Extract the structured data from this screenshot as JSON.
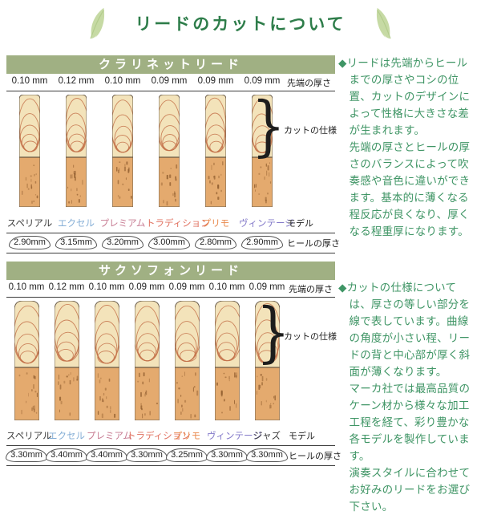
{
  "page_title": "リードのカットについて",
  "colors": {
    "title_green": "#2e7d4a",
    "section_bar_green": "#a0b083",
    "body_text_green": "#3f9565",
    "leaf_green": "#c6daa4",
    "reed_vamp": "#f3e3ba",
    "reed_bark": "#e4aa6e",
    "cut_line": "#c4734b"
  },
  "clarinet": {
    "header": "クラリネットリード",
    "tip_label": "先端の厚さ",
    "cut_label": "カットの仕様",
    "brace": "}",
    "model_label": "モデル",
    "heel_label": "ヒールの厚さ",
    "models": [
      {
        "tip": "0.10 mm",
        "name": "スペリアル",
        "color": "#3a3a3a",
        "heel": "2.90mm"
      },
      {
        "tip": "0.12 mm",
        "name": "エクセル",
        "color": "#85aed6",
        "heel": "3.15mm"
      },
      {
        "tip": "0.10 mm",
        "name": "プレミアム",
        "color": "#c77b92",
        "heel": "3.20mm"
      },
      {
        "tip": "0.09 mm",
        "name": "トラディション",
        "color": "#e0705f",
        "heel": "3.00mm"
      },
      {
        "tip": "0.09 mm",
        "name": "プリモ",
        "color": "#e98a4e",
        "heel": "2.80mm"
      },
      {
        "tip": "0.09 mm",
        "name": "ヴィンテージ",
        "color": "#8379c9",
        "heel": "2.90mm"
      }
    ]
  },
  "saxophone": {
    "header": "サクソフォンリード",
    "tip_label": "先端の厚さ",
    "cut_label": "カットの仕様",
    "brace": "}",
    "model_label": "モデル",
    "heel_label": "ヒールの厚さ",
    "models": [
      {
        "tip": "0.10 mm",
        "name": "スペリアル",
        "color": "#3a3a3a",
        "heel": "3.30mm"
      },
      {
        "tip": "0.12 mm",
        "name": "エクセル",
        "color": "#85aed6",
        "heel": "3.40mm"
      },
      {
        "tip": "0.10 mm",
        "name": "プレミアム",
        "color": "#c77b92",
        "heel": "3.40mm"
      },
      {
        "tip": "0.09 mm",
        "name": "トラディション",
        "color": "#e0705f",
        "heel": "3.30mm"
      },
      {
        "tip": "0.09 mm",
        "name": "プリモ",
        "color": "#e98a4e",
        "heel": "3.25mm"
      },
      {
        "tip": "0.10 mm",
        "name": "ヴィンテージ",
        "color": "#8379c9",
        "heel": "3.30mm"
      },
      {
        "tip": "0.09 mm",
        "name": "ジャズ",
        "color": "#3a3a3a",
        "heel": "3.30mm"
      }
    ]
  },
  "notes": [
    {
      "text": "◆リードは先端からヒールまでの厚さやコシの位置、カットのデザインによって性格に大きさな差が生まれます。\n先端の厚さとヒールの厚さのバランスによって吹奏感や音色に違いができます。基本的に薄くなる程反応が良くなり、厚くなる程重厚になります。"
    },
    {
      "text": "◆カットの仕様については、厚さの等しい部分を線で表しています。曲線の角度が小さい程、リードの背と中心部が厚く斜面が薄くなります。\nマーカ社では最高品質のケーン材から様々な加工工程を経て、彩り豊かな各モデルを製作しています。\n演奏スタイルに合わせてお好みのリードをお選び下さい。"
    }
  ]
}
